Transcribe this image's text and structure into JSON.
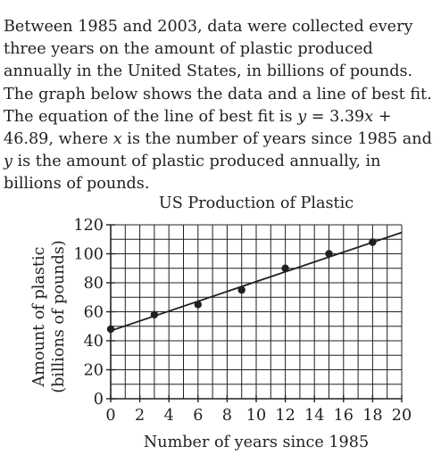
{
  "problem": {
    "segments": [
      {
        "text": "Between 1985 and 2003, data were collected every three years on the amount of plastic produced annually in the United States, in billions of pounds. The graph below shows the data and a line of best fit. The equation of the line of best fit is "
      },
      {
        "text": "y",
        "italic": true
      },
      {
        "text": " = 3.39"
      },
      {
        "text": "x",
        "italic": true
      },
      {
        "text": " + 46.89, where "
      },
      {
        "text": "x",
        "italic": true
      },
      {
        "text": " is the number of years since 1985 and "
      },
      {
        "text": "y",
        "italic": true
      },
      {
        "text": " is the amount of plastic produced annually, in billions of pounds."
      }
    ]
  },
  "chart_data": {
    "type": "scatter",
    "title": "US Production of Plastic",
    "xlabel": "Number of years since 1985",
    "ylabel_lines": [
      "Amount of plastic",
      "(billions of pounds)"
    ],
    "xlim": [
      0,
      20
    ],
    "ylim": [
      0,
      120
    ],
    "x_ticks": [
      0,
      2,
      4,
      6,
      8,
      10,
      12,
      14,
      16,
      18,
      20
    ],
    "y_ticks": [
      0,
      20,
      40,
      60,
      80,
      100,
      120
    ],
    "x_grid_step": 1,
    "y_grid_step": 10,
    "grid": true,
    "points": [
      {
        "x": 0,
        "y": 48
      },
      {
        "x": 3,
        "y": 58
      },
      {
        "x": 6,
        "y": 65
      },
      {
        "x": 9,
        "y": 75
      },
      {
        "x": 12,
        "y": 90
      },
      {
        "x": 15,
        "y": 100
      },
      {
        "x": 18,
        "y": 108
      }
    ],
    "best_fit": {
      "slope": 3.39,
      "intercept": 46.89
    }
  }
}
